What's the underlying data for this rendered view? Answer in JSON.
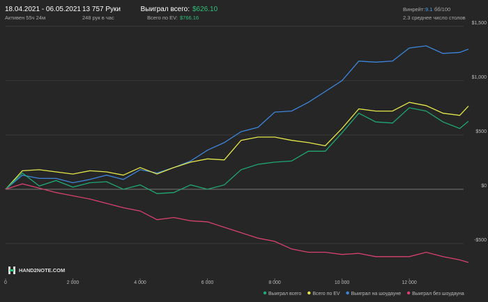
{
  "header": {
    "period": "18.04.2021 - 06.05.2021",
    "active": "Активен 55ч 24м",
    "hands": "13 757 Руки",
    "rate": "248 рук в час",
    "won_label": "Выиграл всего:",
    "won_value": "$626.10",
    "ev_label": "Всего по EV:",
    "ev_value": "$766.16",
    "winrate_label": "Винрейт:",
    "winrate_value": "9.1",
    "winrate_unit": "бб/100",
    "tables": "2.3 среднее число столов",
    "logo": "HAND2NOTE.COM"
  },
  "chart_data": {
    "type": "line",
    "x": [
      0,
      500,
      1000,
      1500,
      2000,
      2500,
      3000,
      3500,
      4000,
      4500,
      5000,
      5500,
      6000,
      6500,
      7000,
      7500,
      8000,
      8500,
      9000,
      9500,
      10000,
      10500,
      11000,
      11500,
      12000,
      12500,
      13000,
      13500,
      13757
    ],
    "series": [
      {
        "name": "Выиграл всего",
        "color": "#1fa873",
        "values": [
          0,
          150,
          30,
          80,
          20,
          60,
          70,
          0,
          40,
          -40,
          -30,
          40,
          0,
          40,
          180,
          230,
          250,
          260,
          350,
          350,
          520,
          700,
          620,
          610,
          750,
          720,
          620,
          560,
          626
        ]
      },
      {
        "name": "Всего по EV",
        "color": "#e6e84a",
        "values": [
          0,
          170,
          180,
          160,
          140,
          170,
          160,
          130,
          200,
          140,
          200,
          250,
          280,
          270,
          450,
          480,
          480,
          450,
          430,
          400,
          560,
          740,
          720,
          720,
          800,
          770,
          700,
          680,
          766
        ]
      },
      {
        "name": "Выиграл на шоудауне",
        "color": "#3d86dc",
        "values": [
          0,
          130,
          100,
          100,
          60,
          90,
          130,
          90,
          180,
          150,
          200,
          260,
          360,
          430,
          530,
          570,
          710,
          720,
          800,
          900,
          1000,
          1180,
          1170,
          1180,
          1300,
          1320,
          1250,
          1260,
          1290
        ]
      },
      {
        "name": "Выиграл без шоудауна",
        "color": "#d9416f",
        "values": [
          0,
          50,
          10,
          -30,
          -60,
          -90,
          -130,
          -170,
          -200,
          -280,
          -260,
          -290,
          -300,
          -350,
          -400,
          -450,
          -480,
          -550,
          -580,
          -580,
          -600,
          -590,
          -620,
          -620,
          -620,
          -580,
          -620,
          -650,
          -673
        ]
      }
    ],
    "xlim": [
      0,
      13800
    ],
    "ylim": [
      -820,
      1550
    ],
    "xticks": [
      0,
      {
        "value": 2000,
        "label": "2 000"
      },
      {
        "value": 4000,
        "label": "4 000"
      },
      {
        "value": 6000,
        "label": "6 000"
      },
      {
        "value": 8000,
        "label": "8 000"
      },
      {
        "value": 10000,
        "label": "10 000"
      },
      {
        "value": 12000,
        "label": "12 000"
      }
    ],
    "yticks": [
      {
        "value": -500,
        "label": "-$500"
      },
      {
        "value": 0,
        "label": "$0"
      },
      {
        "value": 500,
        "label": "$500"
      },
      {
        "value": 1000,
        "label": "$1,000"
      },
      {
        "value": 1500,
        "label": "$1,500"
      }
    ],
    "grid": true
  }
}
